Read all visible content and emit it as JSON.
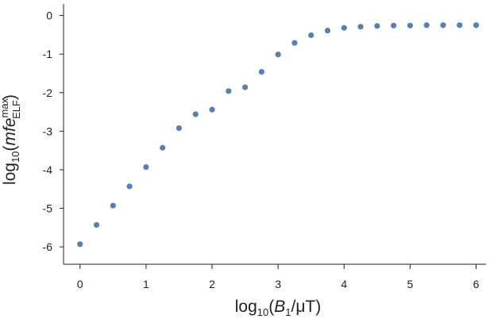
{
  "chart_data": {
    "type": "scatter",
    "title": "",
    "xlabel": {
      "prefix": "log",
      "sub": "10",
      "open": "(",
      "var": "B",
      "var_sub": "1",
      "unit": "/μT",
      "close": ")"
    },
    "ylabel": {
      "prefix": "log",
      "sub": "10",
      "open": "(",
      "var": "mfe",
      "sup": "max",
      "var_sub": "ELF",
      "close": ")"
    },
    "xlim": [
      -0.25,
      6.15
    ],
    "ylim": [
      -6.45,
      0.3
    ],
    "xticks": [
      0,
      1,
      2,
      3,
      4,
      5,
      6
    ],
    "yticks": [
      0,
      -1,
      -2,
      -3,
      -4,
      -5,
      -6
    ],
    "grid": false,
    "marker_color": "#5b7fb0",
    "series": [
      {
        "x": [
          0,
          0.25,
          0.5,
          0.75,
          1,
          1.25,
          1.5,
          1.75,
          2,
          2.25,
          2.5,
          2.75,
          3,
          3.25,
          3.5,
          3.75,
          4,
          4.25,
          4.5,
          4.75,
          5,
          5.25,
          5.5,
          5.75,
          6
        ],
        "y": [
          -5.93,
          -5.43,
          -4.93,
          -4.43,
          -3.93,
          -3.43,
          -2.92,
          -2.56,
          -2.44,
          -1.96,
          -1.86,
          -1.46,
          -1.01,
          -0.71,
          -0.51,
          -0.39,
          -0.32,
          -0.29,
          -0.27,
          -0.26,
          -0.26,
          -0.25,
          -0.25,
          -0.25,
          -0.25
        ]
      }
    ]
  }
}
